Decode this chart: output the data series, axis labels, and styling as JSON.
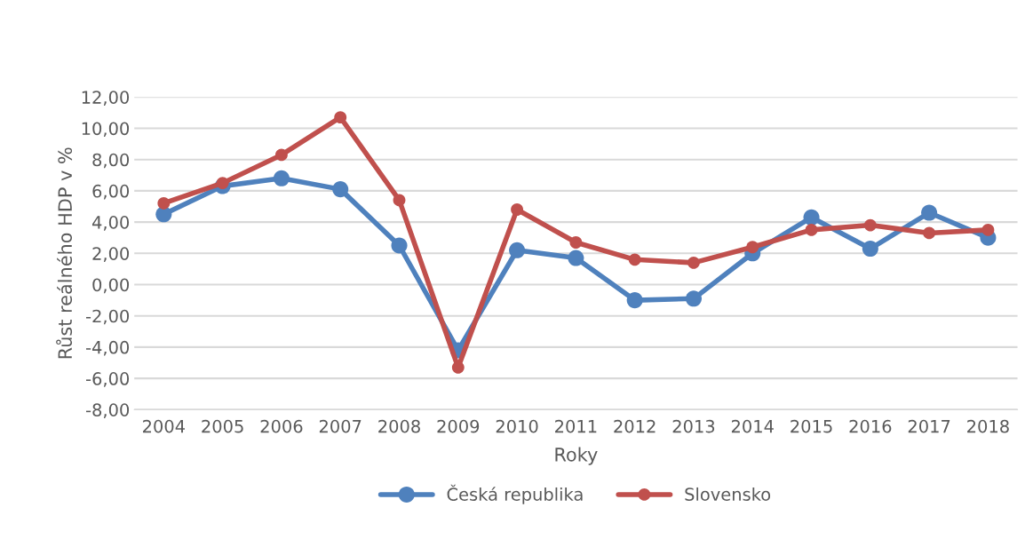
{
  "chart_data": {
    "type": "line",
    "xlabel": "Roky",
    "ylabel": "Růst reálného HDP v %",
    "categories": [
      "2004",
      "2005",
      "2006",
      "2007",
      "2008",
      "2009",
      "2010",
      "2011",
      "2012",
      "2013",
      "2014",
      "2015",
      "2016",
      "2017",
      "2018"
    ],
    "series": [
      {
        "name": "Česká republika",
        "color": "#4f81bd",
        "values": [
          4.5,
          6.3,
          6.8,
          6.1,
          2.5,
          -4.2,
          2.2,
          1.7,
          -1.0,
          -0.9,
          2.0,
          4.3,
          2.3,
          4.6,
          3.0
        ]
      },
      {
        "name": "Slovensko",
        "color": "#c0504d",
        "values": [
          5.2,
          6.5,
          8.3,
          10.7,
          5.4,
          -5.3,
          4.8,
          2.7,
          1.6,
          1.4,
          2.4,
          3.5,
          3.8,
          3.3,
          3.5
        ]
      }
    ],
    "ylim": [
      -8,
      12
    ],
    "yticks": [
      {
        "value": -8,
        "label": "-8,00"
      },
      {
        "value": -6,
        "label": "-6,00"
      },
      {
        "value": -4,
        "label": "-4,00"
      },
      {
        "value": -2,
        "label": "-2,00"
      },
      {
        "value": 0,
        "label": "0,00"
      },
      {
        "value": 2,
        "label": "2,00"
      },
      {
        "value": 4,
        "label": "4,00"
      },
      {
        "value": 6,
        "label": "6,00"
      },
      {
        "value": 8,
        "label": "8,00"
      },
      {
        "value": 10,
        "label": "10,00"
      },
      {
        "value": 12,
        "label": "12,00"
      }
    ],
    "grid": "y",
    "legend": "bottom",
    "marker": "circle",
    "line_style": "solid"
  }
}
